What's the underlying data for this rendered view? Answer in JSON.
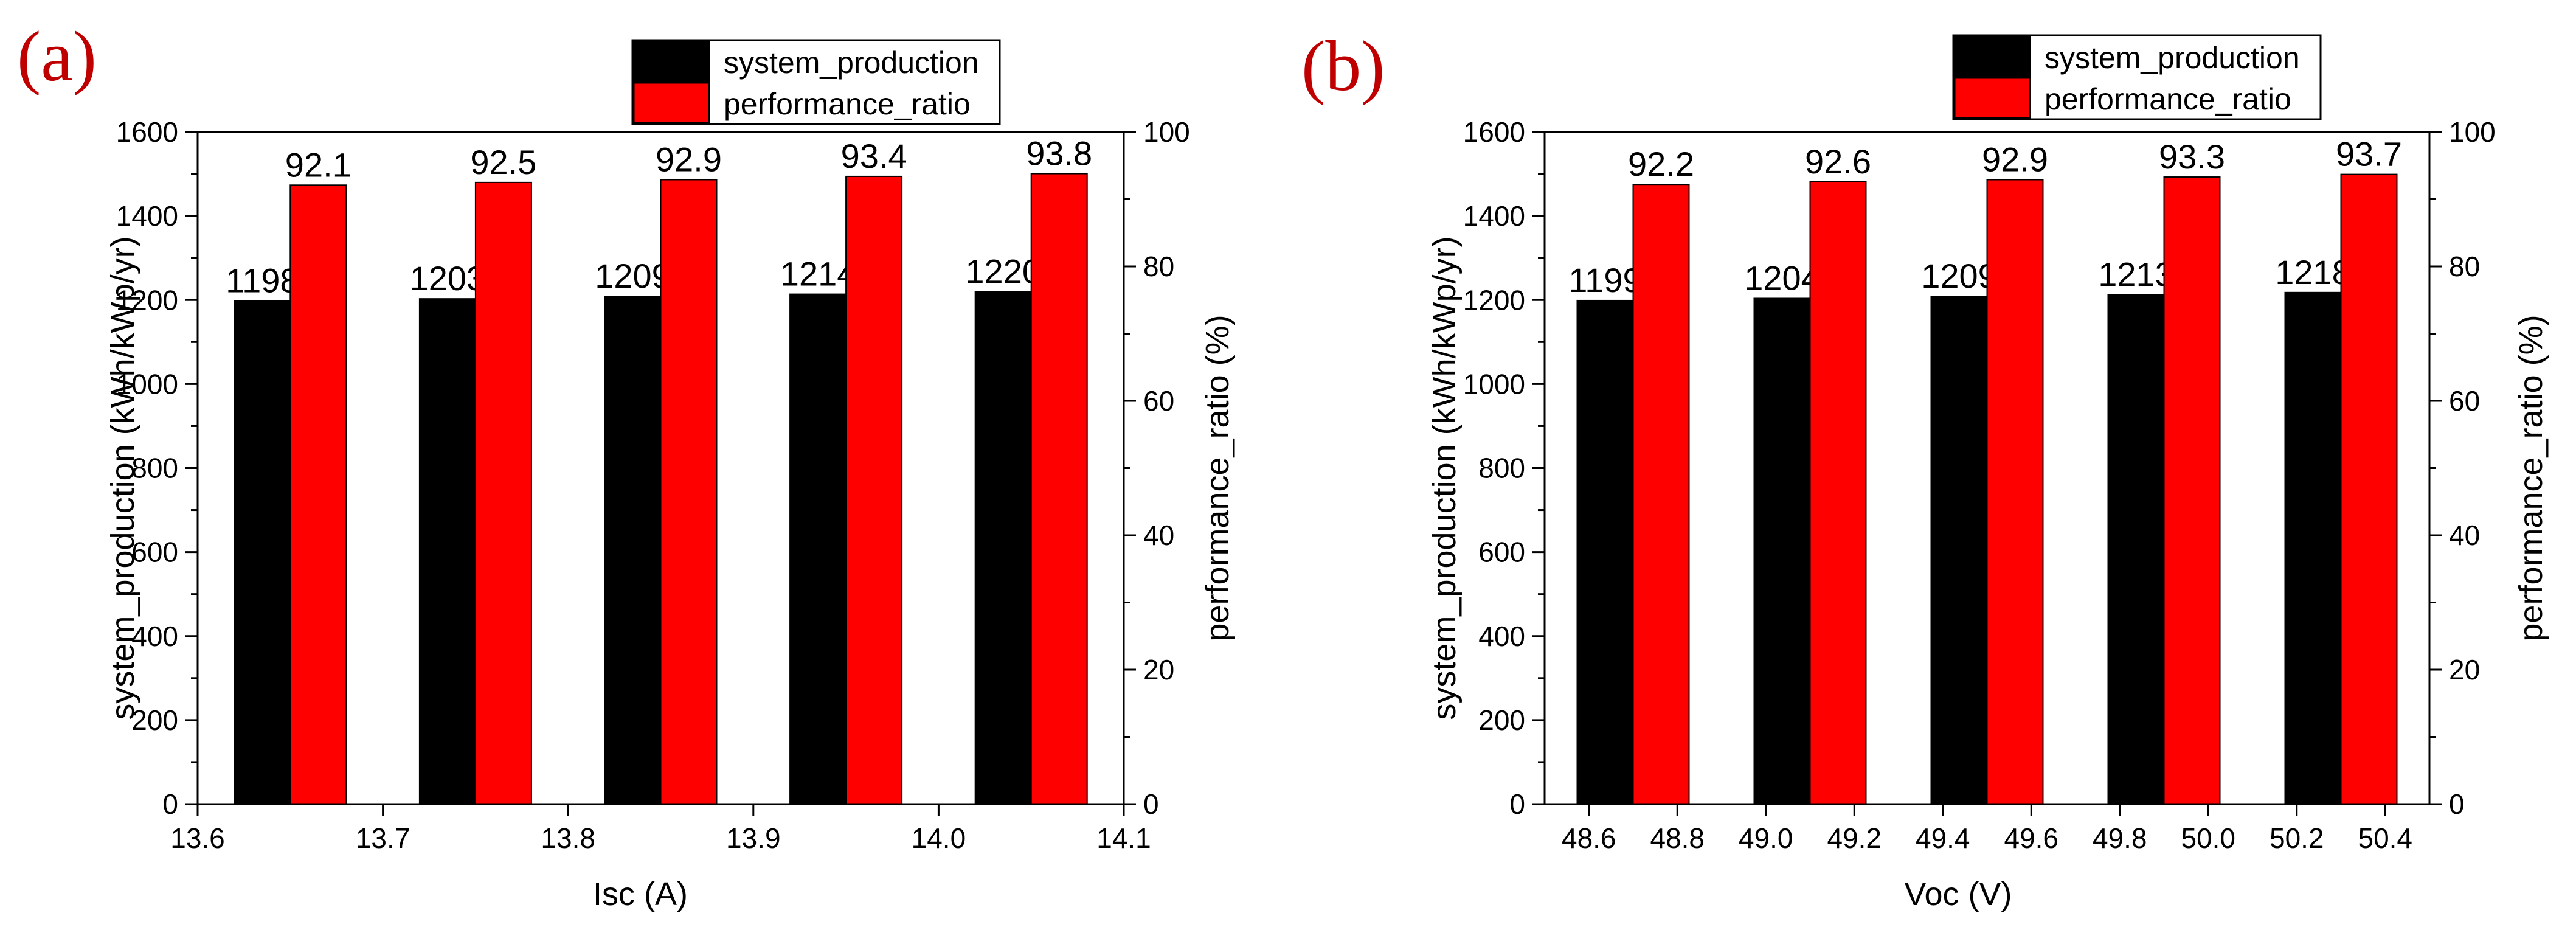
{
  "colors": {
    "system_production": "#000000",
    "performance_ratio": "#ff0000",
    "panel_letter": "#c00000"
  },
  "chart_data": [
    {
      "type": "bar",
      "panel_label": "(a)",
      "title": "",
      "xlabel": "Isc (A)",
      "ylabel": "system_production (kWh/kWp/yr)",
      "y2label": "performance_ratio (%)",
      "x": [
        13.65,
        13.75,
        13.85,
        13.95,
        14.05
      ],
      "xlim": [
        13.6,
        14.1
      ],
      "xticks": [
        13.6,
        13.7,
        13.8,
        13.9,
        14.0,
        14.1
      ],
      "xtick_labels": [
        "13.6",
        "13.7",
        "13.8",
        "13.9",
        "14.0",
        "14.1"
      ],
      "ylim": [
        0,
        1600
      ],
      "yticks": [
        0,
        200,
        400,
        600,
        800,
        1000,
        1200,
        1400,
        1600
      ],
      "ytick_labels": [
        "0",
        "200",
        "400",
        "600",
        "800",
        "1000",
        "1200",
        "1400",
        "1600"
      ],
      "y2lim": [
        0,
        100
      ],
      "y2ticks": [
        0,
        20,
        40,
        60,
        80,
        100
      ],
      "y2tick_labels": [
        "0",
        "20",
        "40",
        "60",
        "80",
        "100"
      ],
      "legend_position": "top-right",
      "grid": false,
      "series": [
        {
          "name": "system_production",
          "axis": "left",
          "values": [
            1198,
            1203,
            1209,
            1214,
            1220
          ],
          "labels": [
            "1198",
            "1203",
            "1209",
            "1214",
            "1220"
          ]
        },
        {
          "name": "performance_ratio",
          "axis": "right",
          "values": [
            92.1,
            92.5,
            92.9,
            93.4,
            93.8
          ],
          "labels": [
            "92.1",
            "92.5",
            "92.9",
            "93.4",
            "93.8"
          ]
        }
      ]
    },
    {
      "type": "bar",
      "panel_label": "(b)",
      "title": "",
      "xlabel": "Voc (V)",
      "ylabel": "system_production (kWh/kWp/yr)",
      "y2label": "performance_ratio (%)",
      "x": [
        48.7,
        49.1,
        49.5,
        49.9,
        50.3
      ],
      "xlim": [
        48.5,
        50.5
      ],
      "xticks": [
        48.6,
        48.8,
        49.0,
        49.2,
        49.4,
        49.6,
        49.8,
        50.0,
        50.2,
        50.4
      ],
      "xtick_labels": [
        "48.6",
        "48.8",
        "49.0",
        "49.2",
        "49.4",
        "49.6",
        "49.8",
        "50.0",
        "50.2",
        "50.4"
      ],
      "ylim": [
        0,
        1600
      ],
      "yticks": [
        0,
        200,
        400,
        600,
        800,
        1000,
        1200,
        1400,
        1600
      ],
      "ytick_labels": [
        "0",
        "200",
        "400",
        "600",
        "800",
        "1000",
        "1200",
        "1400",
        "1600"
      ],
      "y2lim": [
        0,
        100
      ],
      "y2ticks": [
        0,
        20,
        40,
        60,
        80,
        100
      ],
      "y2tick_labels": [
        "0",
        "20",
        "40",
        "60",
        "80",
        "100"
      ],
      "legend_position": "top-right",
      "grid": false,
      "series": [
        {
          "name": "system_production",
          "axis": "left",
          "values": [
            1199,
            1204,
            1209,
            1213,
            1218
          ],
          "labels": [
            "1199",
            "1204",
            "1209",
            "1213",
            "1218"
          ]
        },
        {
          "name": "performance_ratio",
          "axis": "right",
          "values": [
            92.2,
            92.6,
            92.9,
            93.3,
            93.7
          ],
          "labels": [
            "92.2",
            "92.6",
            "92.9",
            "93.3",
            "93.7"
          ]
        }
      ]
    }
  ]
}
